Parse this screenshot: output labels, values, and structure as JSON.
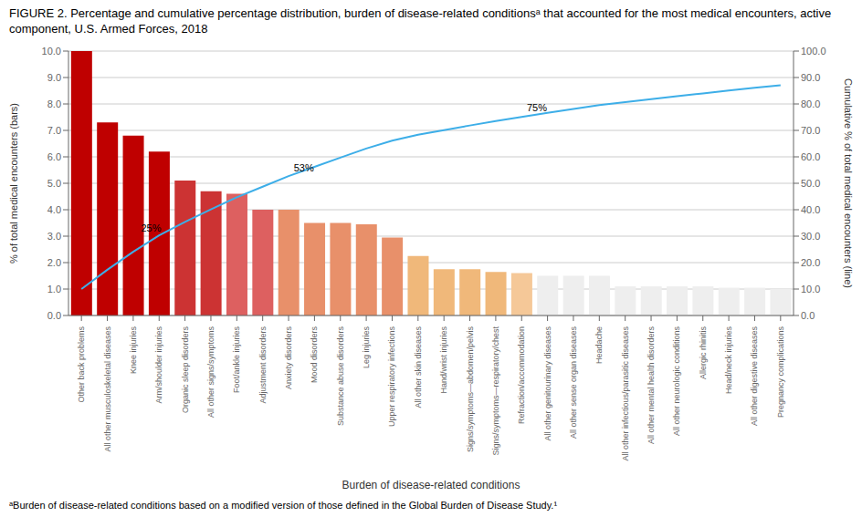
{
  "chart_data": {
    "type": "bar",
    "title": "FIGURE 2. Percentage and cumulative percentage distribution, burden of disease-related conditionsᵃ that accounted for the most medical encounters, active component, U.S. Armed Forces, 2018",
    "footnote": "ᵃBurden of disease-related conditions based on a modified version of those defined in the Global Burden of Disease Study.¹",
    "xlabel": "Burden of disease-related conditions",
    "ylabel": "% of total medical encounters (bars)",
    "y2label": "Cumulative % of total medical encounters (line)",
    "categories": [
      "Other back problems",
      "All other musculoskeletal diseases",
      "Knee injuries",
      "Arm/shoulder injuries",
      "Organic sleep disorders",
      "All other signs/symptoms",
      "Foot/ankle injuries",
      "Adjustment disorders",
      "Anxiety disorders",
      "Mood disorders",
      "Substance abuse disorders",
      "Leg injuries",
      "Upper respiratory infections",
      "All other skin diseases",
      "Hand/wrist injuries",
      "Signs/symptoms—abdomen/pelvis",
      "Signs/symptoms—respiratory/chest",
      "Refraction/accommodation",
      "All other genitourinary diseases",
      "All other sense organ diseases",
      "Headache",
      "All other infectious/parasitic diseases",
      "All other mental health disorders",
      "All other neurologic conditions",
      "Allergic rhinitis",
      "Head/neck injuries",
      "All other digestive diseases",
      "Pregnancy complications"
    ],
    "series": [
      {
        "type": "bar",
        "values": [
          10.0,
          7.3,
          6.8,
          6.2,
          5.1,
          4.7,
          4.6,
          4.0,
          4.0,
          3.5,
          3.5,
          3.45,
          2.95,
          2.25,
          1.75,
          1.75,
          1.65,
          1.6,
          1.5,
          1.5,
          1.5,
          1.1,
          1.1,
          1.1,
          1.1,
          1.05,
          1.05,
          1.0
        ],
        "colors": [
          "#bf0000",
          "#bf0000",
          "#bf0000",
          "#bf0000",
          "#cc3333",
          "#cc3333",
          "#dd6060",
          "#dd6060",
          "#e8906a",
          "#e8906a",
          "#e8906a",
          "#e8906a",
          "#e8906a",
          "#f0b87a",
          "#f0b87a",
          "#f0b87a",
          "#f0b87a",
          "#f5c898",
          "#eeeeee",
          "#eeeeee",
          "#eeeeee",
          "#eeeeee",
          "#eeeeee",
          "#eeeeee",
          "#eeeeee",
          "#eeeeee",
          "#eeeeee",
          "#eeeeee"
        ]
      },
      {
        "type": "line",
        "axis": "y2",
        "color": "#3daee8",
        "values": [
          10.0,
          17.3,
          24.1,
          30.3,
          35.4,
          40.1,
          44.7,
          48.7,
          52.7,
          56.2,
          59.7,
          63.15,
          66.1,
          68.35,
          70.1,
          71.85,
          73.5,
          75.1,
          76.6,
          78.1,
          79.6,
          80.7,
          81.8,
          82.9,
          84.0,
          85.05,
          86.1,
          87.1
        ]
      }
    ],
    "ylim": [
      0,
      10.0
    ],
    "yticks": [
      {
        "value": 0,
        "label": "0.0"
      },
      {
        "value": 1,
        "label": "1.0"
      },
      {
        "value": 2,
        "label": "2.0"
      },
      {
        "value": 3,
        "label": "3.0"
      },
      {
        "value": 4,
        "label": "4.0"
      },
      {
        "value": 5,
        "label": "5.0"
      },
      {
        "value": 6,
        "label": "6.0"
      },
      {
        "value": 7,
        "label": "7.0"
      },
      {
        "value": 8,
        "label": "8.0"
      },
      {
        "value": 9,
        "label": "9.0"
      },
      {
        "value": 10,
        "label": "10.0"
      }
    ],
    "y2lim": [
      0.0,
      100.0
    ],
    "y2ticks": [
      {
        "value": 0,
        "label": "0.0"
      },
      {
        "value": 10,
        "label": "10.0"
      },
      {
        "value": 20,
        "label": "20.0"
      },
      {
        "value": 30,
        "label": "30.0"
      },
      {
        "value": 40,
        "label": "40.0"
      },
      {
        "value": 50,
        "label": "50.0"
      },
      {
        "value": 60,
        "label": "60.0"
      },
      {
        "value": 70,
        "label": "70.0"
      },
      {
        "value": 80,
        "label": "80.0"
      },
      {
        "value": 90,
        "label": "90.0"
      },
      {
        "value": 100,
        "label": "100.0"
      }
    ],
    "grid": true,
    "annotations": [
      {
        "text": "25%",
        "x": 2.3,
        "y": 3.3
      },
      {
        "text": "53%",
        "x": 8.2,
        "y": 5.6
      },
      {
        "text": "75%",
        "x": 17.2,
        "y": 7.85
      }
    ]
  }
}
